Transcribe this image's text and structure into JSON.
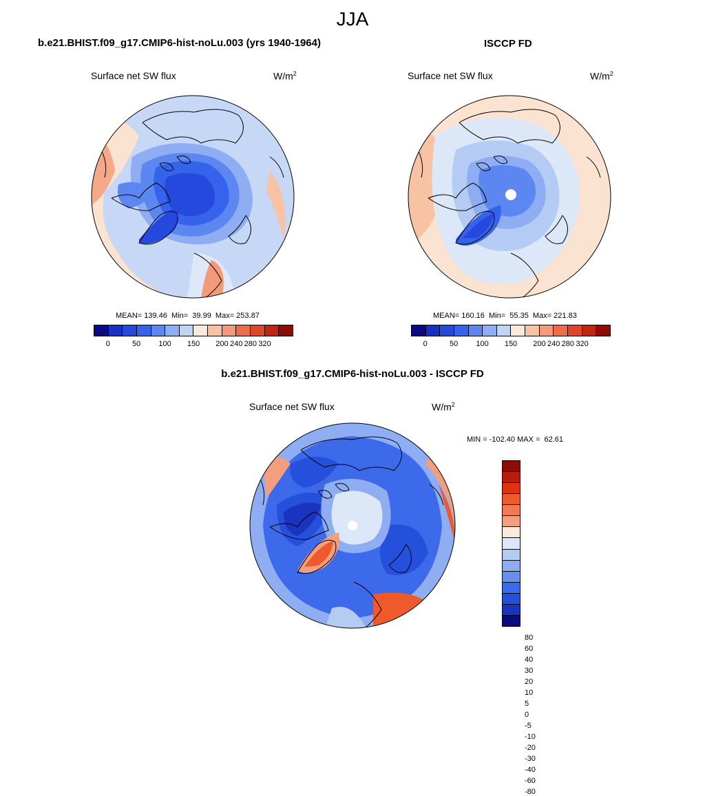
{
  "season_title": "JJA",
  "panels": [
    {
      "title": "b.e21.BHIST.f09_g17.CMIP6-hist-noLu.003 (yrs 1940-1964)",
      "left_label": "Surface net SW flux",
      "units_base": "W/m",
      "units_exp": "2",
      "stats": "MEAN= 139.46  Min=  39.99  Max= 253.87"
    },
    {
      "title": "ISCCP FD",
      "left_label": "Surface net SW flux",
      "units_base": "W/m",
      "units_exp": "2",
      "stats": "MEAN= 160.16  Min=  55.35  Max= 221.83"
    },
    {
      "title": "b.e21.BHIST.f09_g17.CMIP6-hist-noLu.003 - ISCCP FD",
      "left_label": "Surface net SW flux",
      "units_base": "W/m",
      "units_exp": "2",
      "stats": "MIN = -102.40 MAX =  62.61"
    }
  ],
  "colorbar_abs": {
    "colors": [
      "#0a0a82",
      "#1a2fc8",
      "#2449dc",
      "#3563ec",
      "#5c86f0",
      "#8eadf3",
      "#c0d4f6",
      "#fbeadb",
      "#f8c2a4",
      "#f29a79",
      "#ec6d4a",
      "#e0442a",
      "#c32414",
      "#8e0c06"
    ],
    "tick_labels": [
      "0",
      "50",
      "100",
      "150",
      "200",
      "240",
      "280",
      "320"
    ]
  },
  "colorbar_diff": {
    "colors": [
      "#8e0c06",
      "#b81c0c",
      "#dc3410",
      "#ee5a2c",
      "#f07a52",
      "#f29f80",
      "#fbeadb",
      "#dce8f7",
      "#b4cbf3",
      "#8eadf3",
      "#6790ee",
      "#3c6aea",
      "#2550dc",
      "#1a34c0",
      "#0a0a82"
    ],
    "tick_labels": [
      "80",
      "60",
      "40",
      "30",
      "20",
      "10",
      "5",
      "0",
      "-5",
      "-10",
      "-20",
      "-30",
      "-40",
      "-60",
      "-80"
    ]
  }
}
